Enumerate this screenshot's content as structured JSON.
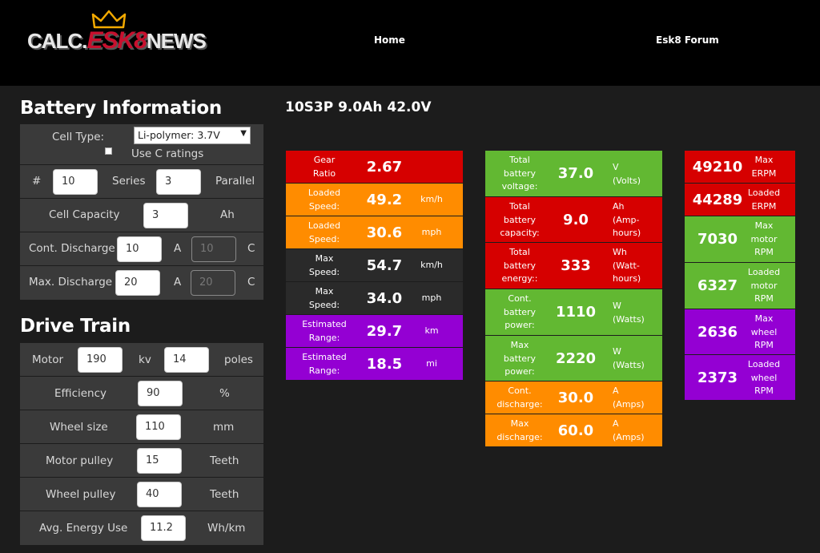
{
  "header": {
    "logo_pre": "CALC.",
    "logo_mark": "ESK8",
    "logo_post": "NEWS",
    "nav": [
      {
        "label": "Home"
      },
      {
        "label": "Esk8 Forum"
      }
    ]
  },
  "battery": {
    "title": "Battery Information",
    "cell_type_label": "Cell Type:",
    "cell_type_value": "Li-polymer: 3.7V",
    "use_c_label": "Use C ratings",
    "series_prefix": "#",
    "series_value": "10",
    "series_label": "Series",
    "parallel_value": "3",
    "parallel_label": "Parallel",
    "capacity_label": "Cell Capacity",
    "capacity_value": "3",
    "capacity_unit": "Ah",
    "cont_label": "Cont. Discharge",
    "cont_value": "10",
    "cont_unit": "A",
    "cont_c_value": "10",
    "cont_c_unit": "C",
    "max_label": "Max. Discharge",
    "max_value": "20",
    "max_unit": "A",
    "max_c_value": "20",
    "max_c_unit": "C"
  },
  "drive": {
    "title": "Drive Train",
    "motor_label": "Motor",
    "motor_kv": "190",
    "kv_label": "kv",
    "poles_value": "14",
    "poles_label": "poles",
    "efficiency_label": "Efficiency",
    "efficiency_value": "90",
    "efficiency_unit": "%",
    "wheel_label": "Wheel size",
    "wheel_value": "110",
    "wheel_unit": "mm",
    "motor_pulley_label": "Motor pulley",
    "motor_pulley_value": "15",
    "motor_pulley_unit": "Teeth",
    "wheel_pulley_label": "Wheel pulley",
    "wheel_pulley_value": "40",
    "wheel_pulley_unit": "Teeth",
    "energy_label": "Avg. Energy Use",
    "energy_value": "11.2",
    "energy_unit": "Wh/km"
  },
  "config_title": "10S3P 9.0Ah 42.0V",
  "col1": [
    {
      "label": "Gear\nRatio",
      "value": "2.67",
      "unit": "",
      "color": "#d60000"
    },
    {
      "label": "Loaded\nSpeed:",
      "value": "49.2",
      "unit": "km/h",
      "color": "#ff8c00"
    },
    {
      "label": "Loaded\nSpeed:",
      "value": "30.6",
      "unit": "mph",
      "color": "#ff8c00"
    },
    {
      "label": "Max\nSpeed:",
      "value": "54.7",
      "unit": "km/h",
      "color": "#2a2a2a"
    },
    {
      "label": "Max\nSpeed:",
      "value": "34.0",
      "unit": "mph",
      "color": "#2a2a2a"
    },
    {
      "label": "Estimated\nRange:",
      "value": "29.7",
      "unit": "km",
      "color": "#9400d3"
    },
    {
      "label": "Estimated\nRange:",
      "value": "18.5",
      "unit": "mi",
      "color": "#9400d3"
    }
  ],
  "col2": [
    {
      "label": "Total\nbattery\nvoltage:",
      "value": "37.0",
      "unit": "V\n(Volts)",
      "color": "#62b832"
    },
    {
      "label": "Total\nbattery\ncapacity:",
      "value": "9.0",
      "unit": "Ah\n(Amp-\nhours)",
      "color": "#d60000"
    },
    {
      "label": "Total\nbattery\nenergy::",
      "value": "333",
      "unit": "Wh\n(Watt-\nhours)",
      "color": "#d60000"
    },
    {
      "label": "Cont.\nbattery\npower:",
      "value": "1110",
      "unit": "W\n(Watts)",
      "color": "#62b832"
    },
    {
      "label": "Max\nbattery\npower:",
      "value": "2220",
      "unit": "W\n(Watts)",
      "color": "#62b832"
    },
    {
      "label": "Cont.\ndischarge:",
      "value": "30.0",
      "unit": "A\n(Amps)",
      "color": "#ff8c00"
    },
    {
      "label": "Max\ndischarge:",
      "value": "60.0",
      "unit": "A\n(Amps)",
      "color": "#ff8c00"
    }
  ],
  "col3": [
    {
      "label": "Max\nERPM",
      "value": "49210",
      "color": "#d60000"
    },
    {
      "label": "Loaded\nERPM",
      "value": "44289",
      "color": "#d60000"
    },
    {
      "label": "Max\nmotor\nRPM",
      "value": "7030",
      "color": "#62b832"
    },
    {
      "label": "Loaded\nmotor\nRPM",
      "value": "6327",
      "color": "#62b832"
    },
    {
      "label": "Max\nwheel\nRPM",
      "value": "2636",
      "color": "#9400d3"
    },
    {
      "label": "Loaded\nwheel\nRPM",
      "value": "2373",
      "color": "#9400d3"
    }
  ]
}
